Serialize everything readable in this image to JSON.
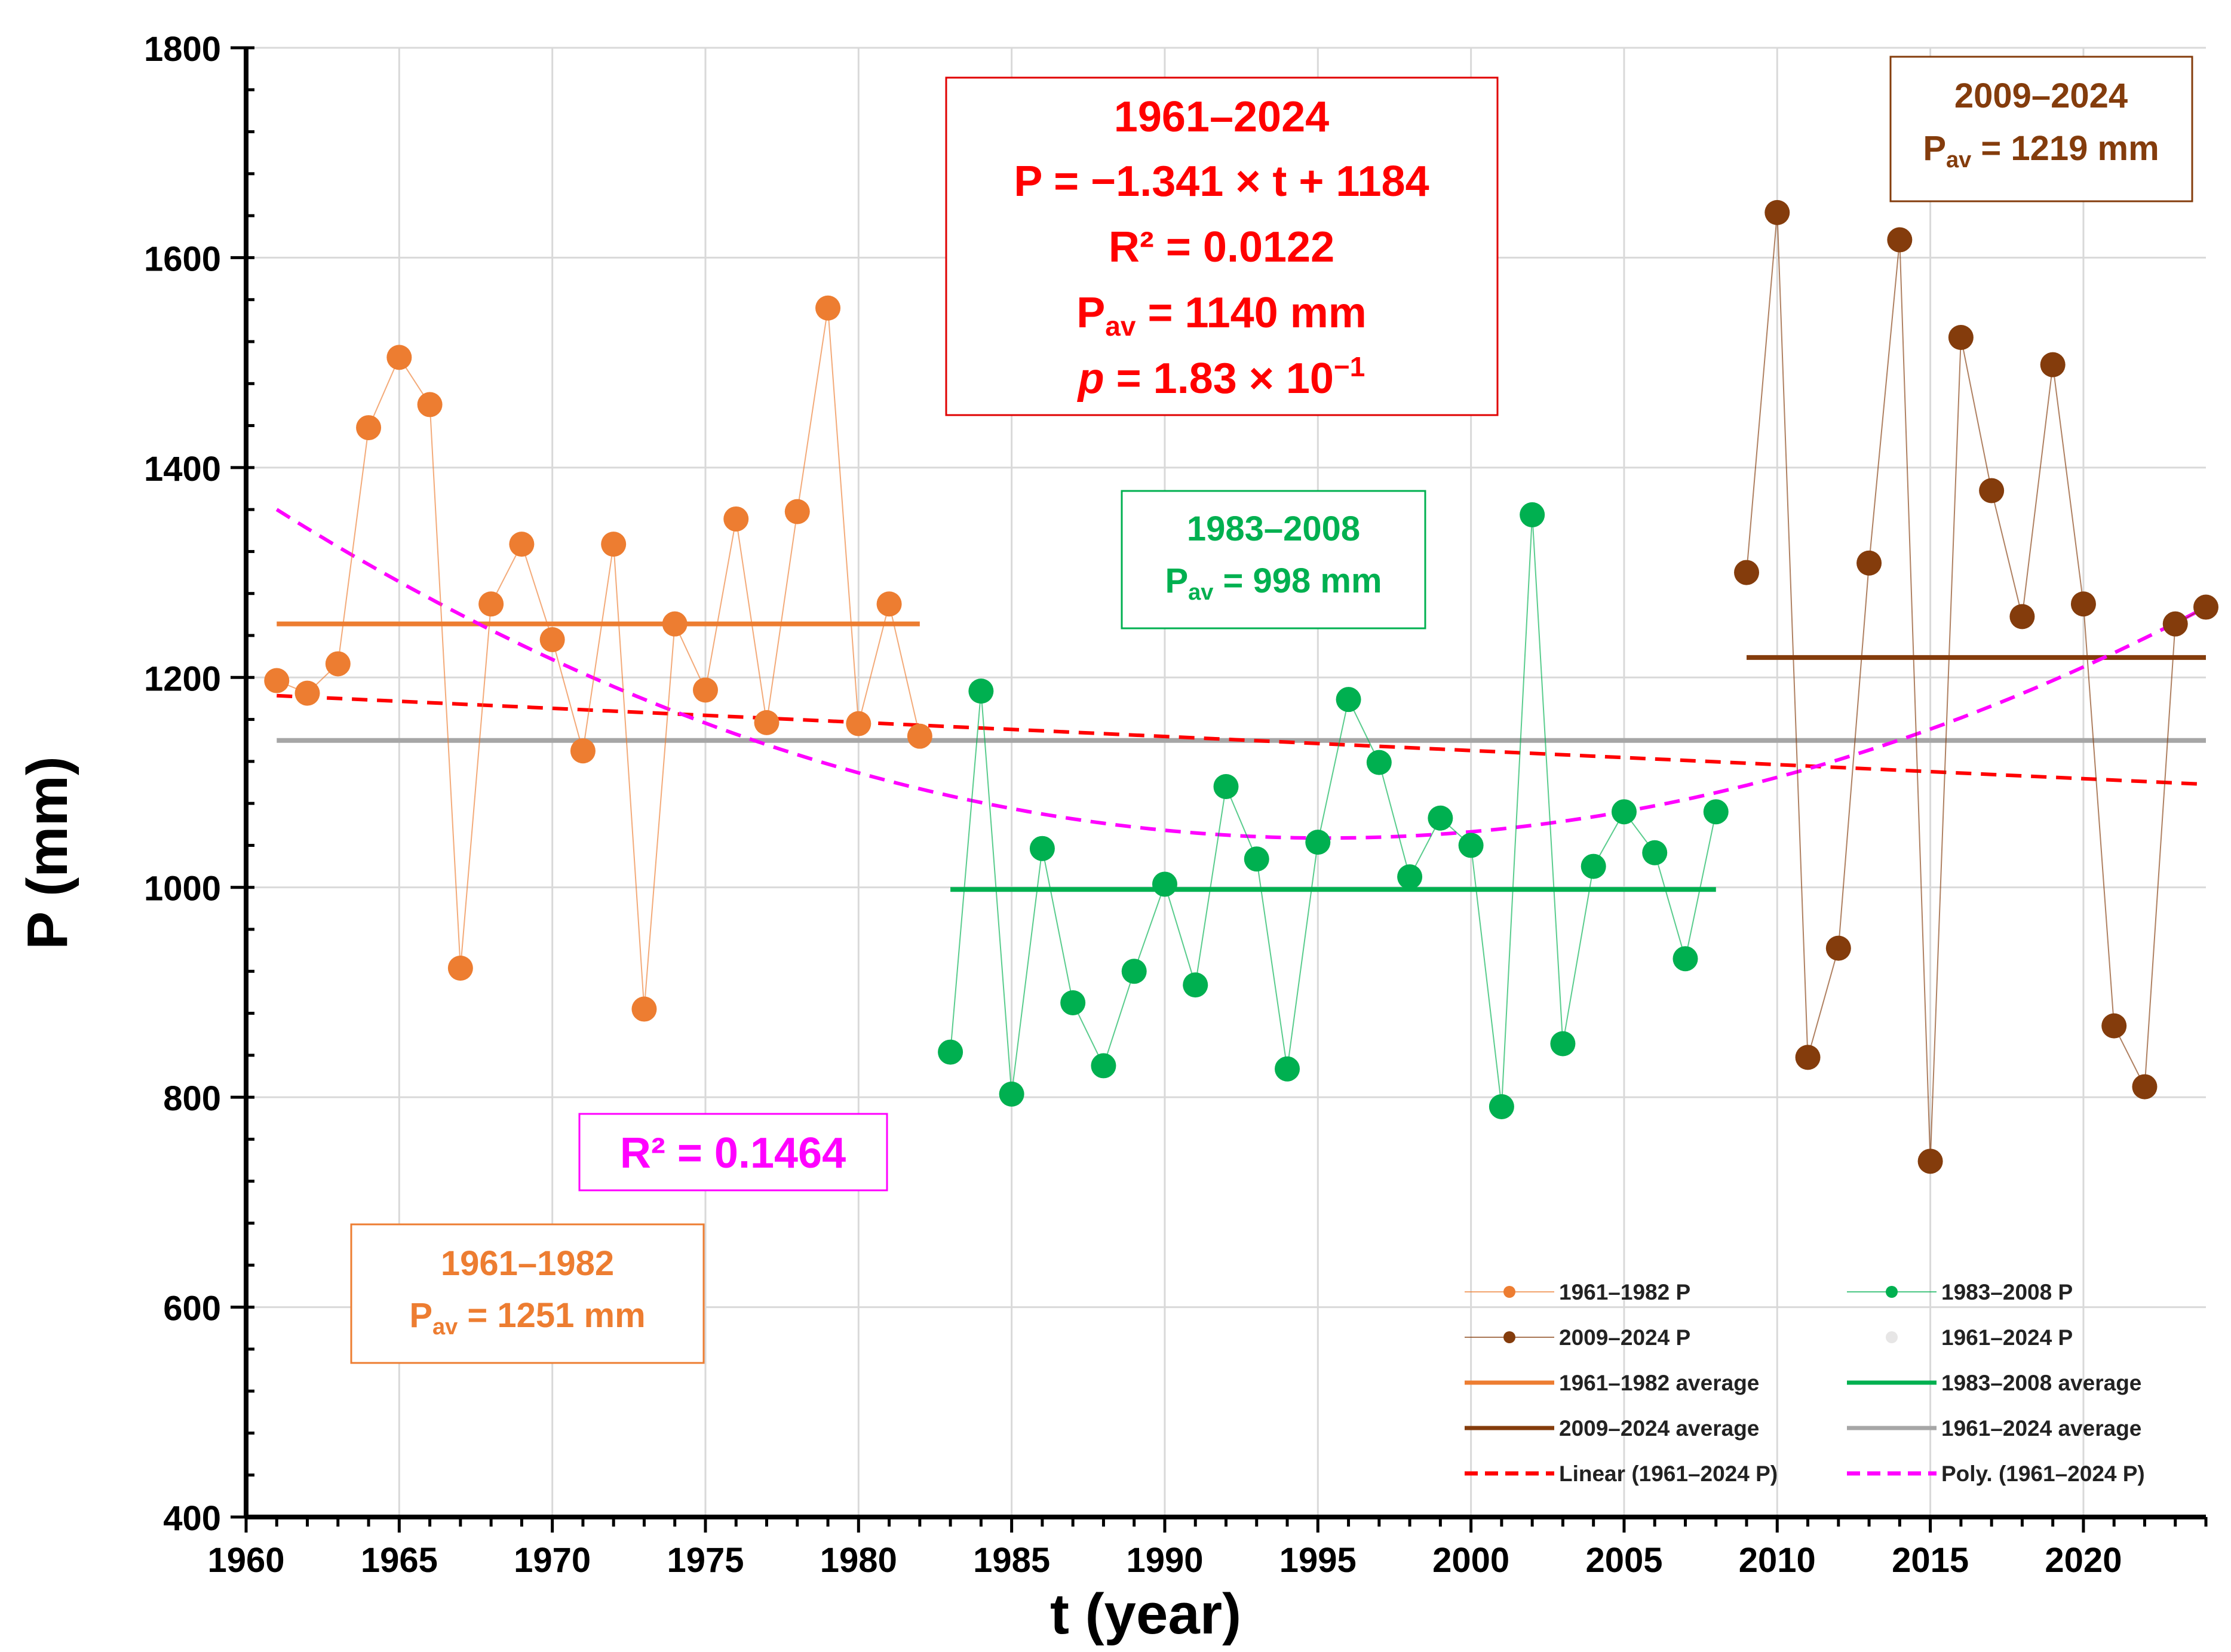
{
  "chart_data": {
    "type": "scatter",
    "xlabel": "t (year)",
    "ylabel": "P (mm)",
    "xlim": [
      1960,
      2024
    ],
    "ylim": [
      400,
      1800
    ],
    "xticks": [
      1960,
      1965,
      1970,
      1975,
      1980,
      1985,
      1990,
      1995,
      2000,
      2005,
      2010,
      2015,
      2020
    ],
    "yticks": [
      400,
      600,
      800,
      1000,
      1200,
      1400,
      1600,
      1800
    ],
    "grid": true,
    "legend_position": "bottom-right",
    "colors": {
      "p1": "#ED7D31",
      "p2": "#00B050",
      "p3": "#843C0C",
      "overall": "#A6A6A6",
      "linear": "#FF0000",
      "poly": "#FF00FF",
      "all_marker": "#E7E6E6",
      "grid": "#D9D9D9"
    },
    "series": [
      {
        "name": "1961–1982 P",
        "x": [
          1961,
          1962,
          1963,
          1964,
          1965,
          1966,
          1967,
          1968,
          1969,
          1970,
          1971,
          1972,
          1973,
          1974,
          1975,
          1976,
          1977,
          1978,
          1979,
          1980,
          1981,
          1982
        ],
        "values": [
          1197,
          1185,
          1213,
          1438,
          1505,
          1460,
          923,
          1270,
          1327,
          1236,
          1130,
          1327,
          884,
          1251,
          1188,
          1351,
          1157,
          1358,
          1552,
          1156,
          1270,
          1144
        ]
      },
      {
        "name": "1983–2008 P",
        "x": [
          1983,
          1984,
          1985,
          1986,
          1987,
          1988,
          1989,
          1990,
          1991,
          1992,
          1993,
          1994,
          1995,
          1996,
          1997,
          1998,
          1999,
          2000,
          2001,
          2002,
          2003,
          2004,
          2005,
          2006,
          2007,
          2008
        ],
        "values": [
          843,
          1187,
          803,
          1037,
          890,
          830,
          920,
          1003,
          907,
          1096,
          1027,
          827,
          1043,
          1179,
          1119,
          1010,
          1066,
          1040,
          791,
          1355,
          851,
          1020,
          1072,
          1033,
          932,
          1072
        ]
      },
      {
        "name": "2009–2024 P",
        "x": [
          2009,
          2010,
          2011,
          2012,
          2013,
          2014,
          2015,
          2016,
          2017,
          2018,
          2019,
          2020,
          2021,
          2022,
          2023,
          2024
        ],
        "values": [
          1300,
          1643,
          838,
          942,
          1309,
          1617,
          739,
          1524,
          1378,
          1258,
          1498,
          1270,
          868,
          810,
          1251,
          1267
        ]
      },
      {
        "name": "1961–2024 P"
      },
      {
        "name": "1961–1982 average",
        "x": [
          1961,
          1982
        ],
        "value": 1251
      },
      {
        "name": "1983–2008 average",
        "x": [
          1983,
          2008
        ],
        "value": 998
      },
      {
        "name": "2009–2024 average",
        "x": [
          2009,
          2024
        ],
        "value": 1219
      },
      {
        "name": "1961–2024 average",
        "x": [
          1961,
          2024
        ],
        "value": 1140
      },
      {
        "name": "Linear (1961–2024 P)",
        "slope": -1.341,
        "intercept": 1184
      },
      {
        "name": "Poly. (1961–2024 P)",
        "x": [
          1961,
          1995.5,
          2024
        ],
        "values": [
          1360,
          1047,
          1267
        ]
      }
    ],
    "annotations": {
      "overall": {
        "period": "1961–2024",
        "equation": "P = −1.341 × t + 1184",
        "r2": "R² = 0.0122",
        "pav_prefix": "P",
        "pav_sub": "av",
        "pav_value": " = 1140 mm",
        "p_italic": "p",
        "p_mid": " = 1.83 × 10",
        "p_exp": "−1"
      },
      "p1": {
        "period": "1961–1982",
        "pav_prefix": "P",
        "pav_sub": "av",
        "pav_value": " = 1251 mm"
      },
      "p2": {
        "period": "1983–2008",
        "pav_prefix": "P",
        "pav_sub": "av",
        "pav_value": " = 998 mm"
      },
      "p3": {
        "period": "2009–2024",
        "pav_prefix": "P",
        "pav_sub": "av",
        "pav_value": " = 1219 mm"
      },
      "poly_r2": "R² = 0.1464"
    }
  }
}
